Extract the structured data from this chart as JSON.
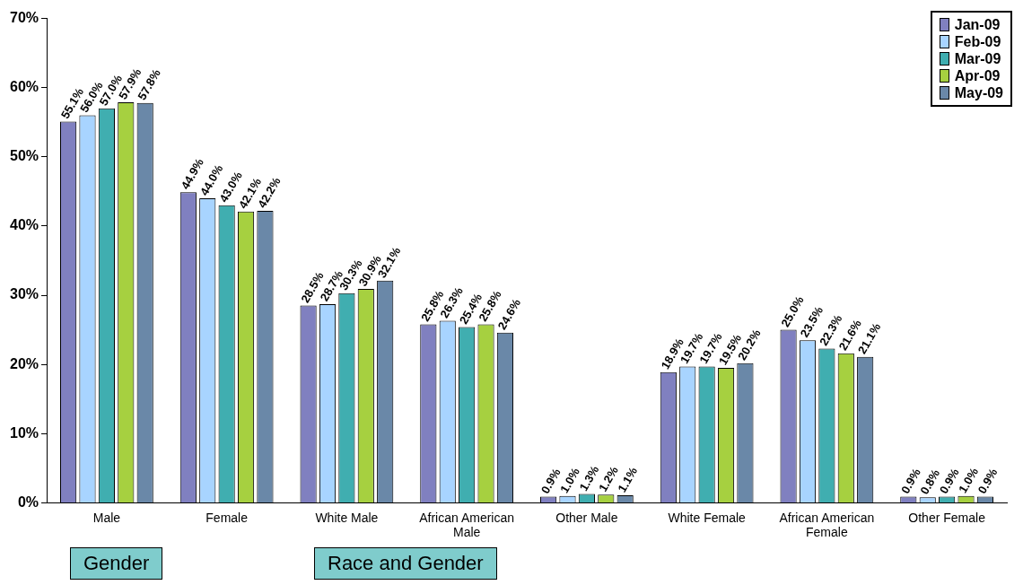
{
  "chart_data": {
    "type": "bar",
    "categories": [
      "Male",
      "Female",
      "White Male",
      "African American Male",
      "Other Male",
      "White Female",
      "African American Female",
      "Other Female"
    ],
    "series": [
      {
        "name": "Jan-09",
        "color": "#8080c0",
        "values": [
          55.1,
          44.9,
          28.5,
          25.8,
          0.9,
          18.9,
          25.0,
          0.9
        ],
        "value_labels": [
          "55.1%",
          "44.9%",
          "28.5%",
          "25.8%",
          "0.9%",
          "18.9%",
          "25.0%",
          "0.9%"
        ]
      },
      {
        "name": "Feb-09",
        "color": "#a8d4ff",
        "values": [
          56.0,
          44.0,
          28.7,
          26.3,
          1.0,
          19.7,
          23.5,
          0.8
        ],
        "value_labels": [
          "56.0%",
          "44.0%",
          "28.7%",
          "26.3%",
          "1.0%",
          "19.7%",
          "23.5%",
          "0.8%"
        ]
      },
      {
        "name": "Mar-09",
        "color": "#40aeb0",
        "values": [
          57.0,
          43.0,
          30.3,
          25.4,
          1.3,
          19.7,
          22.3,
          0.9
        ],
        "value_labels": [
          "57.0%",
          "43.0%",
          "30.3%",
          "25.4%",
          "1.3%",
          "19.7%",
          "22.3%",
          "0.9%"
        ]
      },
      {
        "name": "Apr-09",
        "color": "#a6d040",
        "values": [
          57.9,
          42.1,
          30.9,
          25.8,
          1.2,
          19.5,
          21.6,
          1.0
        ],
        "value_labels": [
          "57.9%",
          "42.1%",
          "30.9%",
          "25.8%",
          "1.2%",
          "19.5%",
          "21.6%",
          "1.0%"
        ]
      },
      {
        "name": "May-09",
        "color": "#6a88a8",
        "values": [
          57.8,
          42.2,
          32.1,
          24.6,
          1.1,
          20.2,
          21.1,
          0.9
        ],
        "value_labels": [
          "57.8%",
          "42.2%",
          "32.1%",
          "24.6%",
          "1.1%",
          "20.2%",
          "21.1%",
          "0.9%"
        ]
      }
    ],
    "ylim": [
      0,
      70
    ],
    "yticks": [
      {
        "value": 0,
        "label": "0%"
      },
      {
        "value": 10,
        "label": "10%"
      },
      {
        "value": 20,
        "label": "20%"
      },
      {
        "value": 30,
        "label": "30%"
      },
      {
        "value": 40,
        "label": "40%"
      },
      {
        "value": 50,
        "label": "50%"
      },
      {
        "value": 60,
        "label": "60%"
      },
      {
        "value": 70,
        "label": "70%"
      }
    ],
    "grid": false,
    "legend": "top right",
    "annotations": [
      "Gender",
      "Race and Gender"
    ]
  }
}
